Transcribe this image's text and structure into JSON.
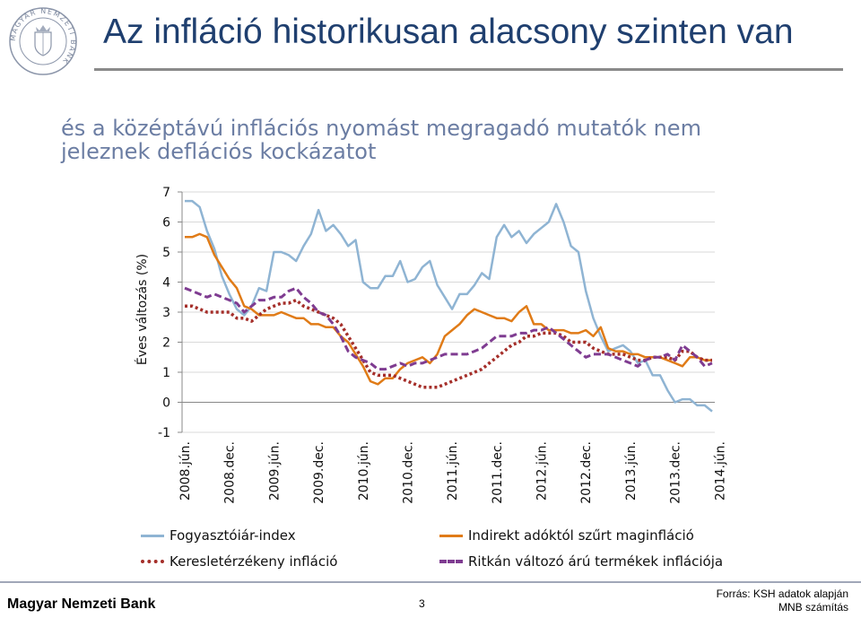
{
  "header": {
    "title": "Az infláció historikusan alacsony szinten van",
    "subtitle": "és a középtávú inflációs nyomást megragadó mutatók nem jeleznek deflációs kockázatot"
  },
  "logo": {
    "text": "MAGYAR NEMZETI BANK",
    "color": "#7f8aa0"
  },
  "footer": {
    "brand": "Magyar Nemzeti Bank",
    "page": "3",
    "source_line1": "Forrás: KSH adatok alapján",
    "source_line2": "MNB számítás"
  },
  "chart_data": {
    "type": "line",
    "ylabel": "Éves változás (%)",
    "ylim": [
      -1,
      7
    ],
    "yticks": [
      -1,
      0,
      1,
      2,
      3,
      4,
      5,
      6,
      7
    ],
    "grid": "horizontal",
    "x_tick_labels": [
      "2008.jún.",
      "2008.dec.",
      "2009.jún.",
      "2009.dec.",
      "2010.jún.",
      "2010.dec.",
      "2011.jún.",
      "2011.dec.",
      "2012.jún.",
      "2012.dec.",
      "2013.jún.",
      "2013.dec.",
      "2014.jún."
    ],
    "legend_position": "bottom",
    "series": [
      {
        "name": "Fogyasztóiár-index",
        "color": "#8fb4d3",
        "style": "solid",
        "values": [
          6.7,
          6.7,
          6.5,
          5.7,
          5.1,
          4.2,
          3.6,
          3.1,
          2.9,
          3.2,
          3.8,
          3.7,
          5.0,
          5.0,
          4.9,
          4.7,
          5.2,
          5.6,
          6.4,
          5.7,
          5.9,
          5.6,
          5.2,
          5.4,
          4.0,
          3.8,
          3.8,
          4.2,
          4.2,
          4.7,
          4.0,
          4.1,
          4.5,
          4.7,
          3.9,
          3.5,
          3.1,
          3.6,
          3.6,
          3.9,
          4.3,
          4.1,
          5.5,
          5.9,
          5.5,
          5.7,
          5.3,
          5.6,
          5.8,
          6.0,
          6.6,
          6.0,
          5.2,
          5.0,
          3.7,
          2.8,
          2.2,
          1.7,
          1.8,
          1.9,
          1.7,
          1.3,
          1.4,
          0.9,
          0.9,
          0.4,
          0.0,
          0.1,
          0.1,
          -0.1,
          -0.1,
          -0.3
        ]
      },
      {
        "name": "Indirekt adóktól szűrt maginfláció",
        "color": "#e07b17",
        "style": "solid",
        "values": [
          5.5,
          5.5,
          5.6,
          5.5,
          4.9,
          4.5,
          4.1,
          3.8,
          3.2,
          3.1,
          2.9,
          2.9,
          2.9,
          3.0,
          2.9,
          2.8,
          2.8,
          2.6,
          2.6,
          2.5,
          2.5,
          2.2,
          2.0,
          1.6,
          1.2,
          0.7,
          0.6,
          0.8,
          0.8,
          1.1,
          1.3,
          1.4,
          1.5,
          1.3,
          1.6,
          2.2,
          2.4,
          2.6,
          2.9,
          3.1,
          3.0,
          2.9,
          2.8,
          2.8,
          2.7,
          3.0,
          3.2,
          2.6,
          2.6,
          2.4,
          2.4,
          2.4,
          2.3,
          2.3,
          2.4,
          2.2,
          2.5,
          1.8,
          1.7,
          1.7,
          1.6,
          1.6,
          1.5,
          1.5,
          1.5,
          1.4,
          1.3,
          1.2,
          1.5,
          1.5,
          1.4,
          1.4
        ]
      },
      {
        "name": "Keresletérzékeny infláció",
        "color": "#a52f2a",
        "style": "dotted",
        "values": [
          3.2,
          3.2,
          3.1,
          3.0,
          3.0,
          3.0,
          3.0,
          2.8,
          2.8,
          2.7,
          2.9,
          3.1,
          3.2,
          3.3,
          3.3,
          3.4,
          3.2,
          3.1,
          3.0,
          2.9,
          2.8,
          2.6,
          2.2,
          1.8,
          1.4,
          1.0,
          0.9,
          0.9,
          0.9,
          0.8,
          0.7,
          0.6,
          0.5,
          0.5,
          0.5,
          0.6,
          0.7,
          0.8,
          0.9,
          1.0,
          1.1,
          1.3,
          1.5,
          1.7,
          1.9,
          2.0,
          2.2,
          2.2,
          2.3,
          2.3,
          2.3,
          2.2,
          2.0,
          2.0,
          2.0,
          1.8,
          1.7,
          1.6,
          1.6,
          1.6,
          1.5,
          1.4,
          1.4,
          1.5,
          1.5,
          1.5,
          1.4,
          1.7,
          1.7,
          1.5,
          1.4,
          1.4
        ]
      },
      {
        "name": "Ritkán változó árú termékek inflációja",
        "color": "#7f3c91",
        "style": "dashed",
        "values": [
          3.8,
          3.7,
          3.6,
          3.5,
          3.6,
          3.5,
          3.4,
          3.3,
          3.0,
          3.2,
          3.4,
          3.4,
          3.5,
          3.5,
          3.7,
          3.8,
          3.5,
          3.3,
          3.0,
          2.9,
          2.6,
          2.2,
          1.7,
          1.5,
          1.4,
          1.3,
          1.1,
          1.1,
          1.2,
          1.3,
          1.2,
          1.3,
          1.3,
          1.4,
          1.5,
          1.6,
          1.6,
          1.6,
          1.6,
          1.7,
          1.8,
          2.0,
          2.2,
          2.2,
          2.2,
          2.3,
          2.3,
          2.4,
          2.4,
          2.5,
          2.3,
          2.1,
          1.9,
          1.7,
          1.5,
          1.6,
          1.6,
          1.6,
          1.5,
          1.4,
          1.3,
          1.2,
          1.4,
          1.5,
          1.5,
          1.6,
          1.4,
          1.9,
          1.7,
          1.5,
          1.2,
          1.3
        ]
      }
    ]
  }
}
